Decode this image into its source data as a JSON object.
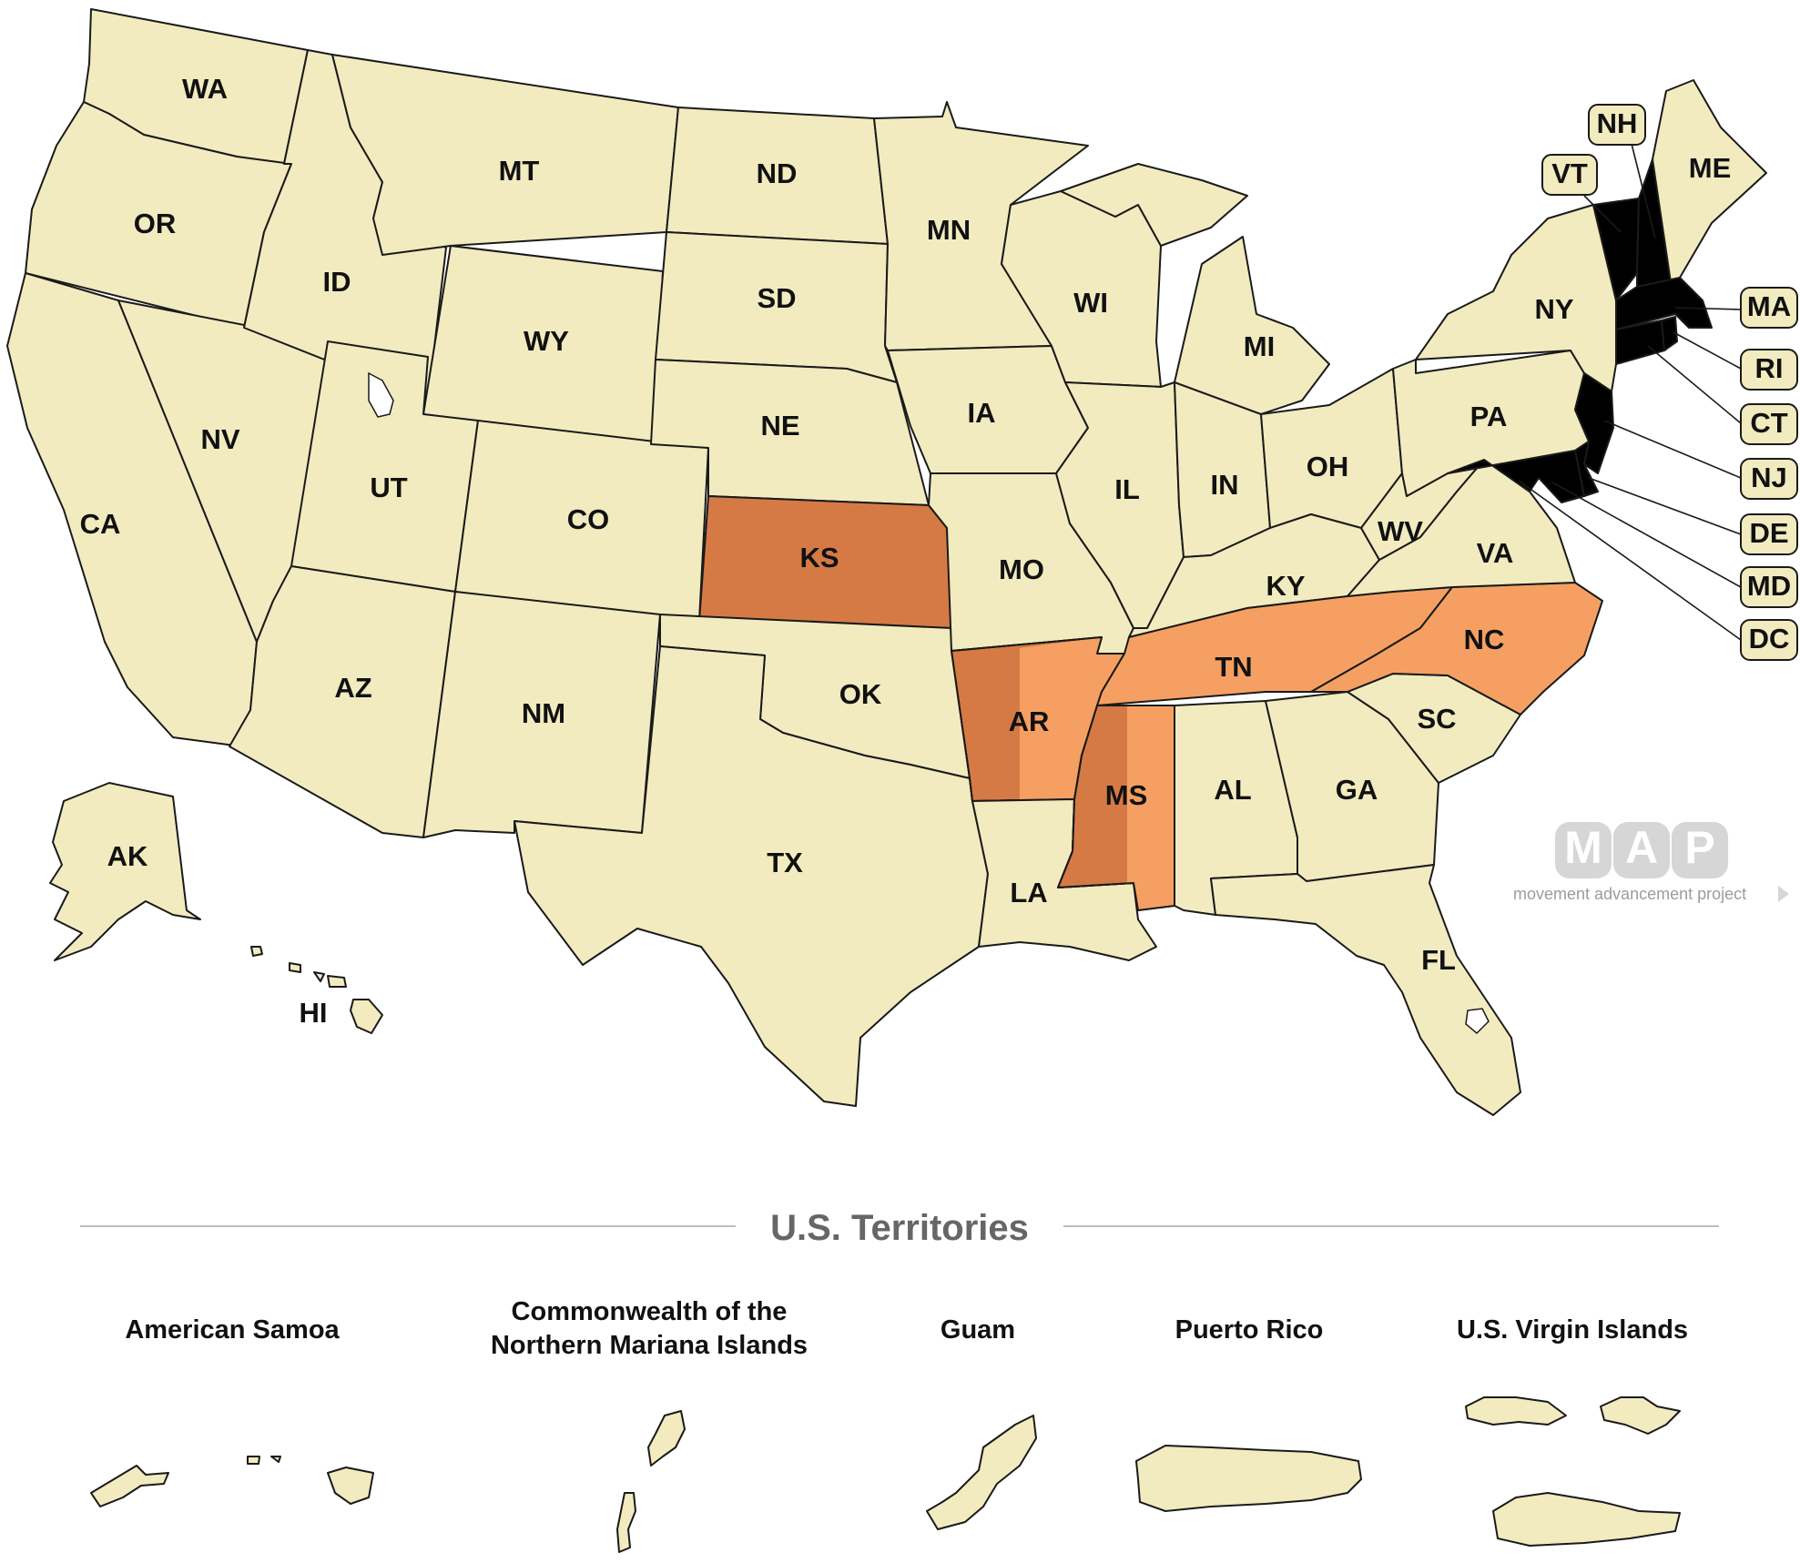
{
  "colors": {
    "default": "#f1ebbf",
    "dark_orange": "#d67a45",
    "light_orange": "#f5a062",
    "border": "#1a1a1a",
    "section_title": "#666666",
    "logo_gray": "#d6d6d6"
  },
  "states": {
    "WA": {
      "label": "WA",
      "fill": "default"
    },
    "OR": {
      "label": "OR",
      "fill": "default"
    },
    "CA": {
      "label": "CA",
      "fill": "default"
    },
    "NV": {
      "label": "NV",
      "fill": "default"
    },
    "ID": {
      "label": "ID",
      "fill": "default"
    },
    "MT": {
      "label": "MT",
      "fill": "default"
    },
    "WY": {
      "label": "WY",
      "fill": "default"
    },
    "UT": {
      "label": "UT",
      "fill": "default"
    },
    "AZ": {
      "label": "AZ",
      "fill": "default"
    },
    "CO": {
      "label": "CO",
      "fill": "default"
    },
    "NM": {
      "label": "NM",
      "fill": "default"
    },
    "ND": {
      "label": "ND",
      "fill": "default"
    },
    "SD": {
      "label": "SD",
      "fill": "default"
    },
    "NE": {
      "label": "NE",
      "fill": "default"
    },
    "KS": {
      "label": "KS",
      "fill": "dark_orange"
    },
    "OK": {
      "label": "OK",
      "fill": "default"
    },
    "TX": {
      "label": "TX",
      "fill": "default"
    },
    "MN": {
      "label": "MN",
      "fill": "default"
    },
    "IA": {
      "label": "IA",
      "fill": "default"
    },
    "MO": {
      "label": "MO",
      "fill": "default"
    },
    "AR": {
      "label": "AR",
      "fill": "dark_orange",
      "partial_fill": "light_orange"
    },
    "LA": {
      "label": "LA",
      "fill": "default"
    },
    "WI": {
      "label": "WI",
      "fill": "default"
    },
    "IL": {
      "label": "IL",
      "fill": "default"
    },
    "MS": {
      "label": "MS",
      "fill": "dark_orange",
      "partial_fill": "light_orange"
    },
    "MI": {
      "label": "MI",
      "fill": "default"
    },
    "IN": {
      "label": "IN",
      "fill": "default"
    },
    "KY": {
      "label": "KY",
      "fill": "default"
    },
    "TN": {
      "label": "TN",
      "fill": "light_orange"
    },
    "AL": {
      "label": "AL",
      "fill": "default"
    },
    "OH": {
      "label": "OH",
      "fill": "default"
    },
    "WV": {
      "label": "WV",
      "fill": "default"
    },
    "VA": {
      "label": "VA",
      "fill": "default"
    },
    "NC": {
      "label": "NC",
      "fill": "light_orange"
    },
    "SC": {
      "label": "SC",
      "fill": "default"
    },
    "GA": {
      "label": "GA",
      "fill": "default"
    },
    "FL": {
      "label": "FL",
      "fill": "default"
    },
    "PA": {
      "label": "PA",
      "fill": "default"
    },
    "NY": {
      "label": "NY",
      "fill": "default"
    },
    "ME": {
      "label": "ME",
      "fill": "default"
    },
    "AK": {
      "label": "AK",
      "fill": "default"
    },
    "HI": {
      "label": "HI",
      "fill": "default"
    }
  },
  "callouts": {
    "NH": "NH",
    "VT": "VT",
    "MA": "MA",
    "RI": "RI",
    "CT": "CT",
    "NJ": "NJ",
    "DE": "DE",
    "MD": "MD",
    "DC": "DC"
  },
  "territories_section": {
    "title": "U.S. Territories",
    "items": [
      {
        "name_lines": [
          "American Samoa"
        ]
      },
      {
        "name_lines": [
          "Commonwealth of the",
          "Northern Mariana Islands"
        ]
      },
      {
        "name_lines": [
          "Guam"
        ]
      },
      {
        "name_lines": [
          "Puerto Rico"
        ]
      },
      {
        "name_lines": [
          "U.S. Virgin Islands"
        ]
      }
    ]
  },
  "logo": {
    "letters": [
      "M",
      "A",
      "P"
    ],
    "tagline": "movement advancement project"
  }
}
